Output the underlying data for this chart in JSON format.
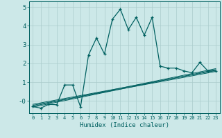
{
  "xlabel": "Humidex (Indice chaleur)",
  "background_color": "#cce8e8",
  "grid_color": "#aacccc",
  "line_color": "#006060",
  "xlim": [
    -0.5,
    23.5
  ],
  "ylim": [
    -0.65,
    5.3
  ],
  "yticks": [
    0,
    1,
    2,
    3,
    4,
    5
  ],
  "ytick_labels": [
    "-0",
    "1",
    "2",
    "3",
    "4",
    "5"
  ],
  "xticks": [
    0,
    1,
    2,
    3,
    4,
    5,
    6,
    7,
    8,
    9,
    10,
    11,
    12,
    13,
    14,
    15,
    16,
    17,
    18,
    19,
    20,
    21,
    22,
    23
  ],
  "main_line_x": [
    0,
    1,
    2,
    3,
    4,
    5,
    6,
    7,
    8,
    9,
    10,
    11,
    12,
    13,
    14,
    15,
    16,
    17,
    18,
    19,
    20,
    21,
    22,
    23
  ],
  "main_line_y": [
    -0.3,
    -0.38,
    -0.18,
    -0.2,
    0.85,
    0.85,
    -0.32,
    2.45,
    3.35,
    2.5,
    4.35,
    4.88,
    3.8,
    4.45,
    3.5,
    4.45,
    1.85,
    1.75,
    1.75,
    1.6,
    1.5,
    2.05,
    1.6,
    1.6
  ],
  "line1_x": [
    0,
    23
  ],
  "line1_y": [
    -0.28,
    1.72
  ],
  "line2_x": [
    0,
    23
  ],
  "line2_y": [
    -0.18,
    1.62
  ],
  "line3_x": [
    0,
    23
  ],
  "line3_y": [
    -0.23,
    1.57
  ],
  "line4_x": [
    0,
    23
  ],
  "line4_y": [
    -0.33,
    1.67
  ]
}
